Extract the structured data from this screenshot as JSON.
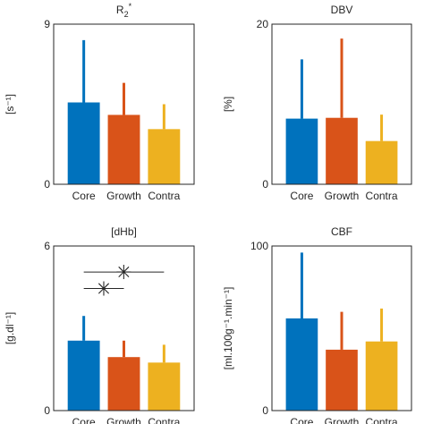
{
  "colors": {
    "Core": "#0072BD",
    "Growth": "#D95319",
    "Contra": "#EDB120",
    "axis": "#262626"
  },
  "chart_data": [
    {
      "type": "bar",
      "title_main": "R",
      "title_sub": "2",
      "title_sup": "*",
      "ylabel": "[s⁻¹]",
      "categories": [
        "Core",
        "Growth",
        "Contra"
      ],
      "values": [
        4.6,
        3.9,
        3.1
      ],
      "errors": [
        3.5,
        1.8,
        1.4
      ],
      "ylim": [
        0,
        9
      ],
      "yticks": [
        0,
        9
      ],
      "significance": []
    },
    {
      "type": "bar",
      "title_main": "DBV",
      "ylabel": "[%]",
      "categories": [
        "Core",
        "Growth",
        "Contra"
      ],
      "values": [
        8.2,
        8.3,
        5.4
      ],
      "errors": [
        7.4,
        9.9,
        3.3
      ],
      "ylim": [
        0,
        20
      ],
      "yticks": [
        0,
        20
      ],
      "significance": []
    },
    {
      "type": "bar",
      "title_main": "[dHb]",
      "ylabel": "[g.dl⁻¹]",
      "categories": [
        "Core",
        "Growth",
        "Contra"
      ],
      "values": [
        2.55,
        1.95,
        1.75
      ],
      "errors": [
        0.9,
        0.6,
        0.65
      ],
      "ylim": [
        0,
        6
      ],
      "yticks": [
        0,
        6
      ],
      "significance": [
        {
          "from": "Core",
          "to": "Growth",
          "level": 4.45,
          "marker": "✳"
        },
        {
          "from": "Core",
          "to": "Contra",
          "level": 5.05,
          "marker": "✳"
        }
      ]
    },
    {
      "type": "bar",
      "title_main": "CBF",
      "ylabel": "[ml.100g⁻¹.min⁻¹]",
      "categories": [
        "Core",
        "Growth",
        "Contra"
      ],
      "values": [
        56,
        37,
        42
      ],
      "errors": [
        40,
        23,
        20
      ],
      "ylim": [
        0,
        100
      ],
      "yticks": [
        0,
        100
      ],
      "significance": []
    }
  ]
}
